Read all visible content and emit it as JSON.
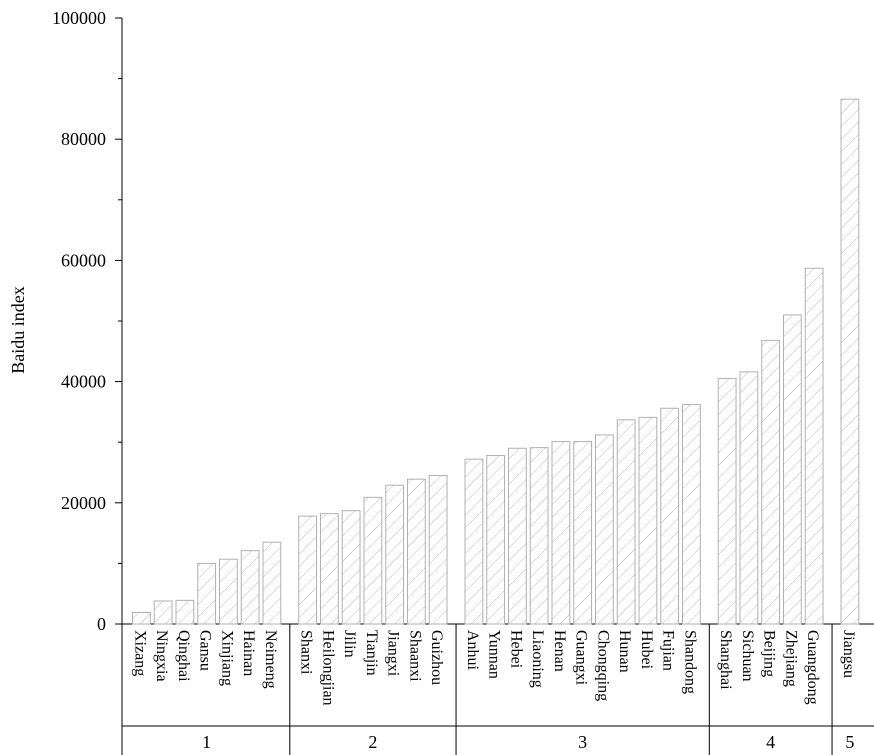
{
  "chart_data": {
    "type": "bar",
    "ylabel": "Baidu index",
    "ylim": [
      0,
      100000
    ],
    "yticks": [
      0,
      20000,
      40000,
      60000,
      80000,
      100000
    ],
    "ytick_labels": [
      "0",
      "20000",
      "40000",
      "60000",
      "80000",
      "100000"
    ],
    "bar_fill": "hatched",
    "bar_stroke": "#b0b0b0",
    "groups": [
      {
        "label": "1",
        "categories": [
          "Xizang",
          "Ningxia",
          "Qinghai",
          "Gansu",
          "Xinjiang",
          "Hainan",
          "Neimeng"
        ],
        "values": [
          1900,
          3800,
          3900,
          10000,
          10700,
          12100,
          13500
        ]
      },
      {
        "label": "2",
        "categories": [
          "Shanxi",
          "Heilongjian",
          "Jilin",
          "Tianjin",
          "Jiangxi",
          "Shaanxi",
          "Guizhou"
        ],
        "values": [
          17800,
          18200,
          18700,
          20900,
          22900,
          23900,
          24500
        ]
      },
      {
        "label": "3",
        "categories": [
          "Anhui",
          "Yunnan",
          "Hebei",
          "Liaoning",
          "Henan",
          "Guangxi",
          "Chongqing",
          "Hunan",
          "Hubei",
          "Fujian",
          "Shandong"
        ],
        "values": [
          27200,
          27800,
          29000,
          29100,
          30100,
          30100,
          31200,
          33700,
          34100,
          35600,
          36200
        ]
      },
      {
        "label": "4",
        "categories": [
          "Shanghai",
          "Sichuan",
          "Beijing",
          "Zhejiang",
          "Guangdong"
        ],
        "values": [
          40500,
          41600,
          46800,
          51000,
          58700
        ]
      },
      {
        "label": "5",
        "categories": [
          "Jiangsu"
        ],
        "values": [
          86600
        ]
      }
    ]
  }
}
